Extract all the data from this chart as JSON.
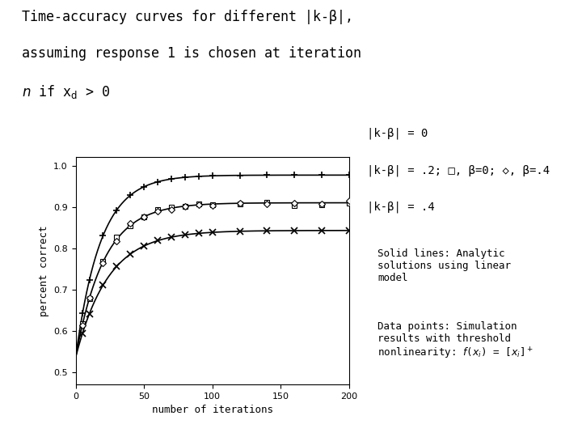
{
  "title_line1": "Time-accuracy curves for different |k-β|,",
  "title_line2": "assuming response 1 is chosen at iteration",
  "title_line3": "n if x",
  "xlabel": "number of iterations",
  "ylabel": "percent correct",
  "xlim": [
    0,
    200
  ],
  "ylim": [
    0.47,
    1.02
  ],
  "yticks": [
    0.5,
    0.6,
    0.7,
    0.8,
    0.9,
    1.0
  ],
  "xticks": [
    0,
    50,
    100,
    150,
    200
  ],
  "bg_color": "#ffffff",
  "curve0_color": "#000000",
  "curve1_color": "#000000",
  "curve2_color": "#000000",
  "curve0_asymptote": 0.977,
  "curve0_rate": 0.055,
  "curve1_asymptote": 0.91,
  "curve1_rate": 0.048,
  "curve2_asymptote": 0.843,
  "curve2_rate": 0.042,
  "data_points_x": [
    5,
    10,
    20,
    30,
    40,
    50,
    60,
    70,
    80,
    90,
    100,
    120,
    140,
    160,
    180,
    200
  ],
  "curve0_start": 0.536,
  "curve1_start": 0.536,
  "curve2_start": 0.536
}
